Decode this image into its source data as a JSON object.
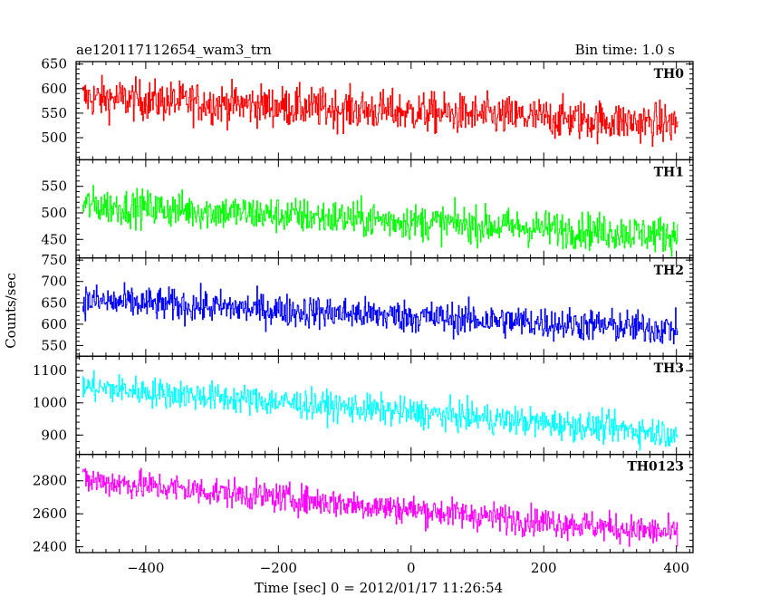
{
  "header": {
    "left_title": "ae120117112654_wam3_trn",
    "right_title": "Bin time: 1.0 s"
  },
  "chart_data": {
    "type": "line",
    "xlabel": "Time [sec] 0 = 2012/01/17 11:26:54",
    "ylabel": "Counts/sec",
    "xlim": [
      -505,
      425
    ],
    "x_ticks": [
      -400,
      -200,
      0,
      200,
      400
    ],
    "x_tick_labels": [
      "−400",
      "−200",
      "0",
      "200",
      "400"
    ],
    "x_range": [
      -495,
      402
    ],
    "bin_time_s": 1.0,
    "grid": false,
    "panels": [
      {
        "label": "TH0",
        "color": "#ff0000",
        "ylim": [
          455,
          655
        ],
        "y_ticks": [
          450,
          500,
          550,
          600,
          650
        ],
        "y_tick_labels": [
          "450",
          "500",
          "550",
          "600",
          "650"
        ],
        "trend": {
          "start": 582,
          "end": 528
        },
        "noise_sd": 29
      },
      {
        "label": "TH1",
        "color": "#00ff00",
        "ylim": [
          415,
          600
        ],
        "y_ticks": [
          450,
          500,
          550
        ],
        "y_tick_labels": [
          "450",
          "500",
          "550"
        ],
        "trend": {
          "start": 515,
          "end": 458
        },
        "noise_sd": 24
      },
      {
        "label": "TH2",
        "color": "#0000ff",
        "ylim": [
          525,
          755
        ],
        "y_ticks": [
          550,
          600,
          650,
          700,
          750
        ],
        "y_tick_labels": [
          "550",
          "600",
          "650",
          "700",
          "750"
        ],
        "trend": {
          "start": 655,
          "end": 588
        },
        "noise_sd": 27
      },
      {
        "label": "TH3",
        "color": "#00ffff",
        "ylim": [
          840,
          1145
        ],
        "y_ticks": [
          900,
          1000,
          1100
        ],
        "y_tick_labels": [
          "900",
          "1000",
          "1100"
        ],
        "trend": {
          "start": 1050,
          "end": 905
        },
        "noise_sd": 32
      },
      {
        "label": "TH0123",
        "color": "#ff00ff",
        "ylim": [
          2365,
          2960
        ],
        "y_ticks": [
          2400,
          2600,
          2800
        ],
        "y_tick_labels": [
          "2400",
          "2600",
          "2800"
        ],
        "trend": {
          "start": 2805,
          "end": 2480
        },
        "noise_sd": 62
      }
    ]
  }
}
